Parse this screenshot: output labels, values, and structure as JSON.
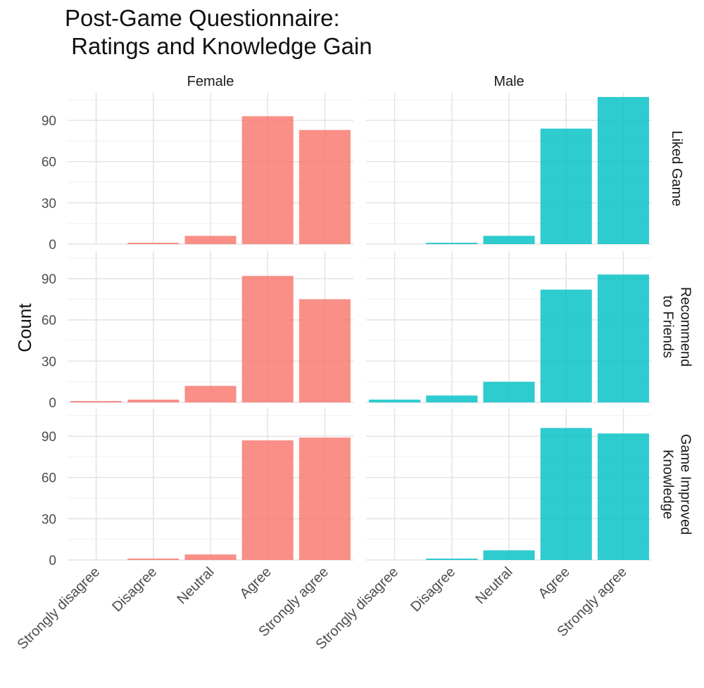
{
  "title": "Post-Game Questionnaire:\n Ratings and Knowledge Gain",
  "chart_data": {
    "type": "bar",
    "title": "Post-Game Questionnaire:\n Ratings and Knowledge Gain",
    "ylabel": "Count",
    "xlabel": "",
    "categories": [
      "Strongly disagree",
      "Disagree",
      "Neutral",
      "Agree",
      "Strongly agree"
    ],
    "column_facets": [
      "Female",
      "Male"
    ],
    "row_facets": [
      "Liked Game",
      "Recommend\nto Friends",
      "Game Improved\nKnowledge"
    ],
    "ylim": [
      0,
      110
    ],
    "yticks": [
      0,
      30,
      60,
      90
    ],
    "colors": {
      "Female": "#F8766D",
      "Male": "#00BFC4"
    },
    "panels": [
      {
        "column": "Female",
        "row": "Liked Game",
        "values": [
          0,
          1,
          6,
          93,
          83
        ]
      },
      {
        "column": "Male",
        "row": "Liked Game",
        "values": [
          0,
          1,
          6,
          84,
          107
        ]
      },
      {
        "column": "Female",
        "row": "Recommend\nto Friends",
        "values": [
          1,
          2,
          12,
          92,
          75
        ]
      },
      {
        "column": "Male",
        "row": "Recommend\nto Friends",
        "values": [
          2,
          5,
          15,
          82,
          93
        ]
      },
      {
        "column": "Female",
        "row": "Game Improved\nKnowledge",
        "values": [
          0,
          1,
          4,
          87,
          89
        ]
      },
      {
        "column": "Male",
        "row": "Game Improved\nKnowledge",
        "values": [
          0,
          1,
          7,
          96,
          92
        ]
      }
    ]
  }
}
